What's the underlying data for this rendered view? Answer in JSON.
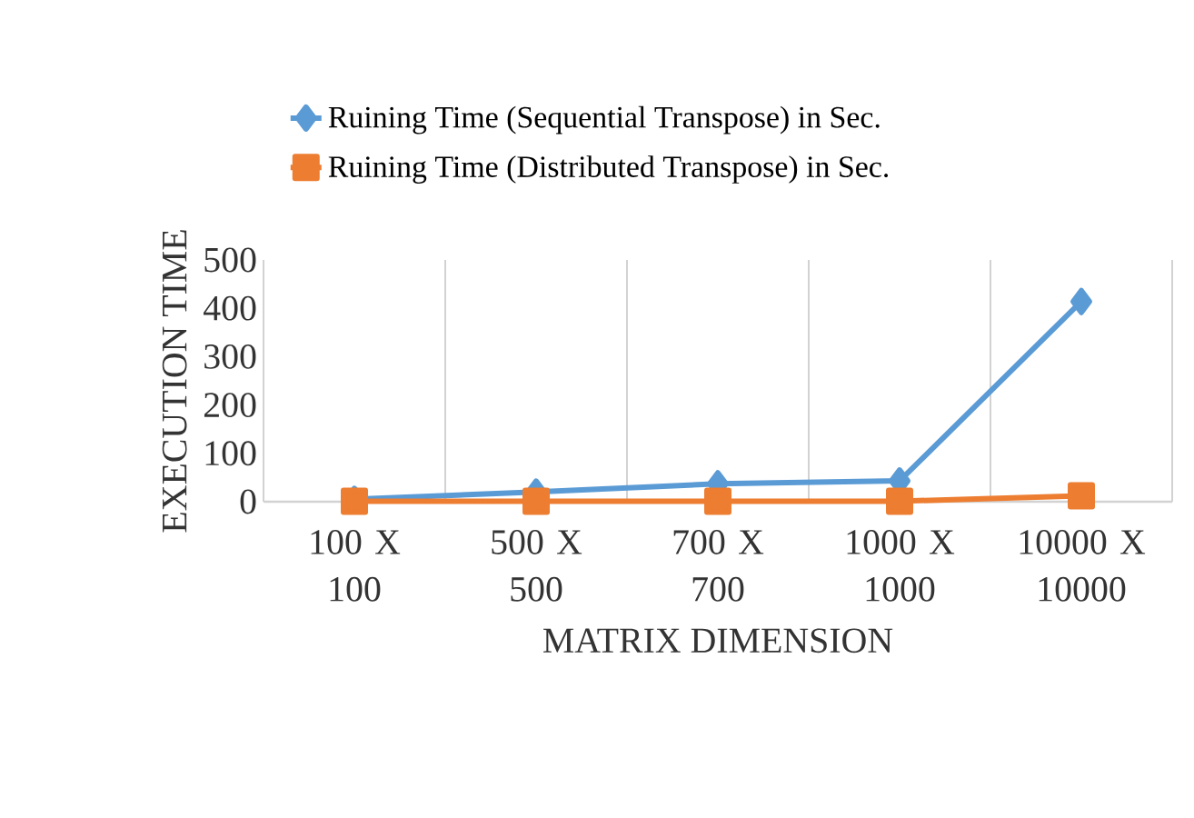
{
  "chart_data": {
    "type": "line",
    "xlabel": "MATRIX DIMENSION",
    "ylabel": "EXECUTION TIME",
    "categories": [
      "100 X 100",
      "500 X 500",
      "700 X 700",
      "1000 X 1000",
      "10000 X 10000"
    ],
    "series": [
      {
        "name": "Ruining Time (Sequential Transpose) in Sec.",
        "color": "#5b9bd5",
        "marker": "diamond",
        "values": [
          5,
          20,
          37,
          43,
          414
        ]
      },
      {
        "name": "Ruining Time (Distributed Transpose) in Sec.",
        "color": "#ed7d31",
        "marker": "square",
        "values": [
          1,
          1,
          1,
          1,
          12
        ]
      }
    ],
    "ylim": [
      0,
      500
    ],
    "yticks": [
      0,
      100,
      200,
      300,
      400,
      500
    ],
    "grid": "x",
    "legend": "top",
    "line_style": "solid"
  }
}
